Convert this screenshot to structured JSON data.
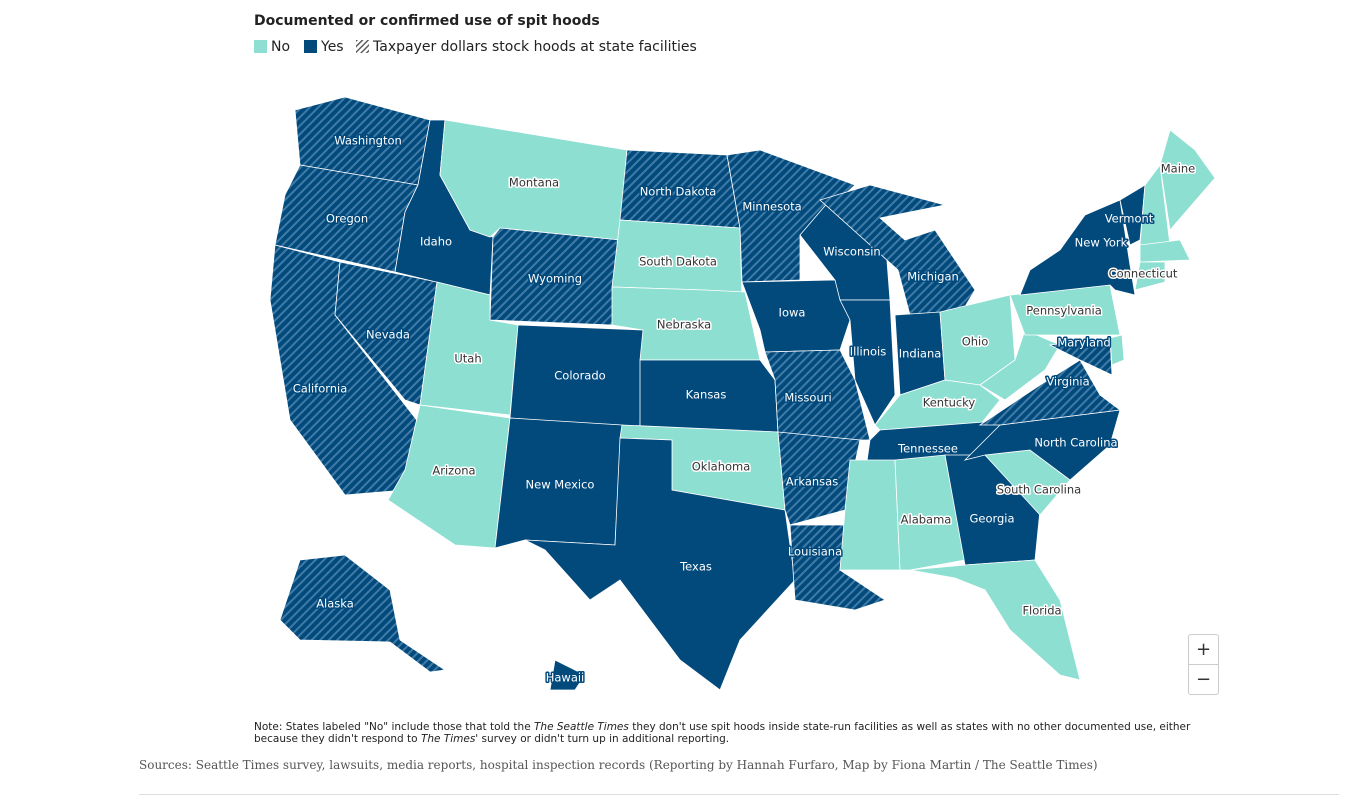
{
  "title": "Documented or confirmed use of spit hoods",
  "legend": [
    {
      "label": "No",
      "status": "no"
    },
    {
      "label": "Yes",
      "status": "yes"
    },
    {
      "label": "Taxpayer dollars stock hoods at state facilities",
      "status": "hatched"
    }
  ],
  "colors": {
    "no": "#8ddfd2",
    "yes": "#02497c",
    "hatch_stripe": "#3f7ba6"
  },
  "states": [
    {
      "name": "Washington",
      "status": "hatched"
    },
    {
      "name": "Oregon",
      "status": "hatched"
    },
    {
      "name": "California",
      "status": "hatched"
    },
    {
      "name": "Nevada",
      "status": "hatched"
    },
    {
      "name": "Idaho",
      "status": "yes"
    },
    {
      "name": "Montana",
      "status": "no"
    },
    {
      "name": "Wyoming",
      "status": "hatched"
    },
    {
      "name": "Utah",
      "status": "no"
    },
    {
      "name": "Colorado",
      "status": "yes"
    },
    {
      "name": "Arizona",
      "status": "no"
    },
    {
      "name": "New Mexico",
      "status": "yes"
    },
    {
      "name": "North Dakota",
      "status": "hatched"
    },
    {
      "name": "South Dakota",
      "status": "no"
    },
    {
      "name": "Nebraska",
      "status": "no"
    },
    {
      "name": "Kansas",
      "status": "yes"
    },
    {
      "name": "Oklahoma",
      "status": "no"
    },
    {
      "name": "Texas",
      "status": "yes"
    },
    {
      "name": "Minnesota",
      "status": "hatched"
    },
    {
      "name": "Iowa",
      "status": "yes"
    },
    {
      "name": "Missouri",
      "status": "hatched"
    },
    {
      "name": "Arkansas",
      "status": "hatched"
    },
    {
      "name": "Louisiana",
      "status": "hatched"
    },
    {
      "name": "Wisconsin",
      "status": "yes"
    },
    {
      "name": "Illinois",
      "status": "yes"
    },
    {
      "name": "Michigan",
      "status": "hatched"
    },
    {
      "name": "Indiana",
      "status": "yes"
    },
    {
      "name": "Ohio",
      "status": "no"
    },
    {
      "name": "Kentucky",
      "status": "no"
    },
    {
      "name": "Tennessee",
      "status": "yes"
    },
    {
      "status": "no"
    },
    {
      "name": "Alabama",
      "status": "no"
    },
    {
      "name": "Georgia",
      "status": "yes"
    },
    {
      "name": "Florida",
      "status": "no"
    },
    {
      "name": "South Carolina",
      "status": "no"
    },
    {
      "name": "North Carolina",
      "status": "yes"
    },
    {
      "name": "Virginia",
      "status": "hatched"
    },
    {
      "status": "no"
    },
    {
      "name": "Maryland",
      "status": "hatched"
    },
    {
      "name": "Pennsylvania",
      "status": "no"
    },
    {
      "status": "no"
    },
    {
      "name": "New York",
      "status": "yes"
    },
    {
      "name": "Vermont",
      "status": "yes"
    },
    {
      "status": "no"
    },
    {
      "name": "Maine",
      "status": "no"
    },
    {
      "status": "no"
    },
    {
      "name": "Connecticut",
      "status": "no"
    },
    {
      "name": "Alaska",
      "status": "hatched"
    },
    {
      "name": "Hawaii",
      "status": "yes"
    }
  ],
  "zoom": [
    "+",
    "−"
  ],
  "note": [
    "Note: States labeled \"No\" include those that told the ",
    "The Seattle Times",
    " they don't use spit hoods inside state-run facilities as well as states with no other documented use, either because they didn't respond to ",
    "The Times'",
    " survey or didn't turn up in additional reporting."
  ],
  "sources": "Sources: Seattle Times survey, lawsuits, media reports, hospital inspection records (Reporting by Hannah Furfaro, Map by Fiona Martin / The Seattle Times)"
}
